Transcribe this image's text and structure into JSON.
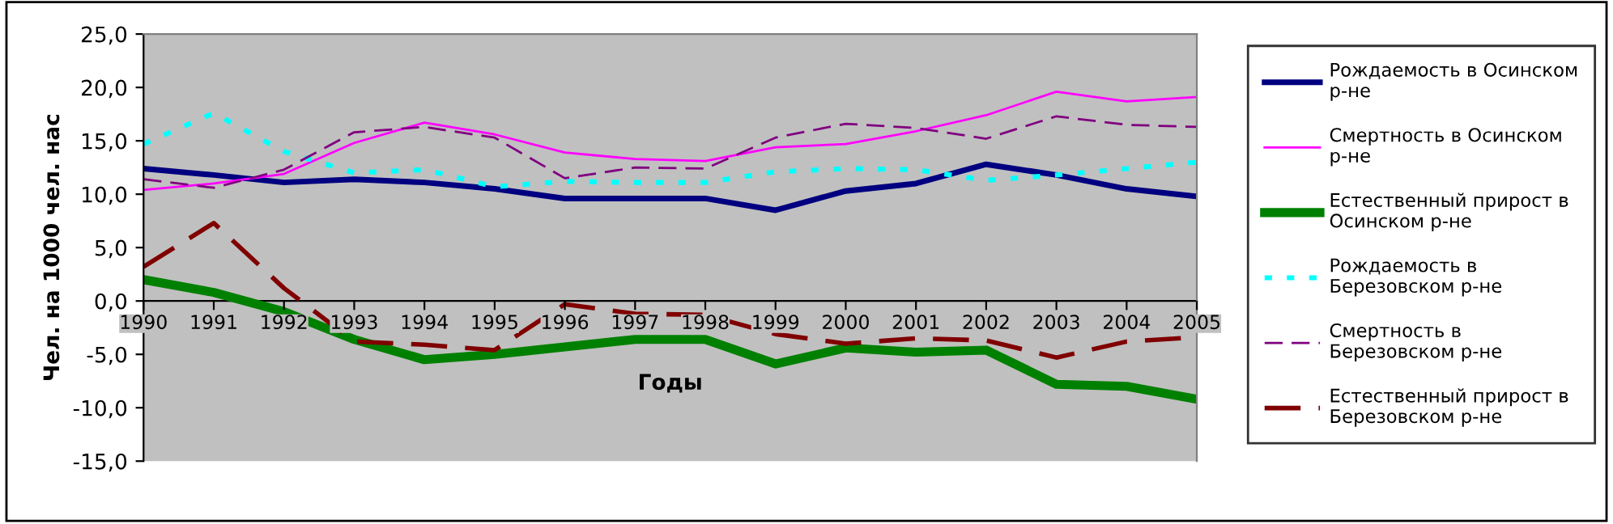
{
  "chart_data": {
    "type": "line",
    "xlabel": "Годы",
    "ylabel": "Чел. на 1000 чел. нас",
    "categories": [
      "1990",
      "1991",
      "1992",
      "1993",
      "1994",
      "1995",
      "1996",
      "1997",
      "1998",
      "1999",
      "2000",
      "2001",
      "2002",
      "2003",
      "2004",
      "2005"
    ],
    "ylim": [
      -15,
      25
    ],
    "yticks": [
      {
        "value": -15,
        "label": "-15,0"
      },
      {
        "value": -10,
        "label": "-10,0"
      },
      {
        "value": -5,
        "label": "-5,0"
      },
      {
        "value": 0,
        "label": "0,0"
      },
      {
        "value": 5,
        "label": "5,0"
      },
      {
        "value": 10,
        "label": "10,0"
      },
      {
        "value": 15,
        "label": "15,0"
      },
      {
        "value": 20,
        "label": "20,0"
      },
      {
        "value": 25,
        "label": "25,0"
      }
    ],
    "grid": false,
    "legend": "right",
    "marker": "none",
    "series": [
      {
        "name": "Рождаемость в Осинском р-не",
        "color": "#000080",
        "line_style": "solid",
        "values": [
          12.4,
          11.8,
          11.1,
          11.4,
          11.1,
          10.5,
          9.6,
          9.6,
          9.6,
          8.5,
          10.3,
          11.0,
          12.8,
          11.8,
          10.5,
          9.8
        ]
      },
      {
        "name": "Смертность в Осинском р-не",
        "color": "#ff00ff",
        "line_style": "solid",
        "values": [
          10.4,
          11.0,
          11.9,
          14.8,
          16.7,
          15.6,
          13.9,
          13.3,
          13.1,
          14.4,
          14.7,
          15.9,
          17.4,
          19.6,
          18.7,
          19.1
        ]
      },
      {
        "name": "Естественный прирост в Осинском р-не",
        "color": "#008000",
        "line_style": "solid",
        "values": [
          2.0,
          0.8,
          -1.0,
          -3.6,
          -5.5,
          -5.0,
          -4.3,
          -3.6,
          -3.6,
          -5.9,
          -4.4,
          -4.8,
          -4.6,
          -7.8,
          -8.0,
          -9.2
        ]
      },
      {
        "name": "Рождаемость в Березовском р-не",
        "color": "#00ffff",
        "line_style": "dotted",
        "values": [
          14.7,
          17.6,
          14.0,
          12.0,
          12.3,
          10.7,
          11.2,
          11.1,
          11.1,
          12.1,
          12.4,
          12.3,
          11.3,
          11.8,
          12.4,
          13.0
        ]
      },
      {
        "name": "Смертность в Березовском р-не",
        "color": "#800080",
        "line_style": "dashed",
        "values": [
          11.4,
          10.6,
          12.3,
          15.8,
          16.3,
          15.3,
          11.5,
          12.5,
          12.4,
          15.3,
          16.6,
          16.2,
          15.2,
          17.3,
          16.5,
          16.3
        ]
      },
      {
        "name": "Естественный прирост в Березовском р-не",
        "color": "#800000",
        "line_style": "dashed",
        "values": [
          3.2,
          7.3,
          1.2,
          -3.8,
          -4.1,
          -4.6,
          -0.3,
          -1.2,
          -1.3,
          -3.1,
          -4.0,
          -3.5,
          -3.7,
          -5.3,
          -3.8,
          -3.4
        ]
      }
    ]
  }
}
